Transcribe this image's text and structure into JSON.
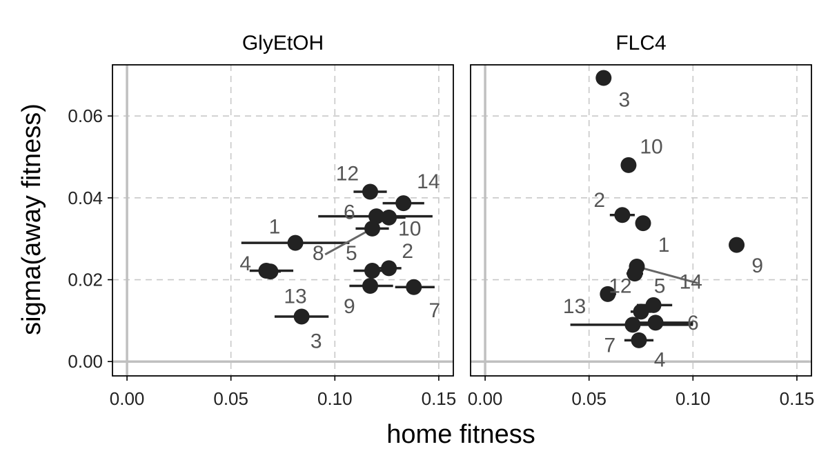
{
  "chart_data": {
    "type": "scatter",
    "xlabel": "home fitness",
    "ylabel": "sigma(away fitness)",
    "xlim": [
      -0.007,
      0.157
    ],
    "ylim": [
      -0.0035,
      0.0725
    ],
    "x_ticks": [
      "0.00",
      "0.05",
      "0.10",
      "0.15"
    ],
    "x_tick_values": [
      0,
      0.05,
      0.1,
      0.15
    ],
    "y_ticks": [
      "0.00",
      "0.02",
      "0.04",
      "0.06"
    ],
    "y_tick_values": [
      0,
      0.02,
      0.04,
      0.06
    ],
    "grid": true,
    "colors": {
      "point": "#222222",
      "label": "#555555",
      "grid": "#c8c8c8",
      "axis_ref": "#c0c0c0"
    },
    "panels": [
      {
        "title": "GlyEtOH",
        "points": [
          {
            "label": "1",
            "x": 0.081,
            "y": 0.029,
            "xerr": [
              0.055,
              0.107
            ],
            "label_x": 0.071,
            "label_y": 0.033
          },
          {
            "label": "2",
            "x": 0.126,
            "y": 0.0228,
            "xerr": [
              0.12,
              0.132
            ],
            "label_x": 0.135,
            "label_y": 0.027
          },
          {
            "label": "3",
            "x": 0.084,
            "y": 0.011,
            "xerr": [
              0.071,
              0.097
            ],
            "label_x": 0.091,
            "label_y": 0.005
          },
          {
            "label": "4",
            "x": 0.067,
            "y": 0.0222,
            "xerr": [
              0.059,
              0.08
            ],
            "label_x": 0.057,
            "label_y": 0.024
          },
          {
            "label": "5",
            "x": 0.118,
            "y": 0.0222,
            "xerr": [
              0.109,
              0.127
            ],
            "label_x": 0.108,
            "label_y": 0.0265
          },
          {
            "label": "6",
            "x": 0.12,
            "y": 0.0355,
            "xerr": [
              0.092,
              0.147
            ],
            "label_x": 0.107,
            "label_y": 0.0365
          },
          {
            "label": "7",
            "x": 0.138,
            "y": 0.0182,
            "xerr": [
              0.129,
              0.148
            ],
            "label_x": 0.148,
            "label_y": 0.0125
          },
          {
            "label": "8",
            "x": 0.118,
            "y": 0.0325,
            "xerr": [
              0.11,
              0.126
            ],
            "label_x": 0.092,
            "label_y": 0.0265,
            "connector": true
          },
          {
            "label": "9",
            "x": 0.117,
            "y": 0.0185,
            "xerr": [
              0.107,
              0.128
            ],
            "label_x": 0.107,
            "label_y": 0.0135
          },
          {
            "label": "10",
            "x": 0.126,
            "y": 0.0352,
            "xerr": [
              0.118,
              0.134
            ],
            "label_x": 0.136,
            "label_y": 0.0325
          },
          {
            "label": "12",
            "x": 0.117,
            "y": 0.0415,
            "xerr": [
              0.109,
              0.125
            ],
            "label_x": 0.106,
            "label_y": 0.046
          },
          {
            "label": "13",
            "x": 0.069,
            "y": 0.022,
            "xerr": [
              0.064,
              0.074
            ],
            "label_x": 0.081,
            "label_y": 0.016
          },
          {
            "label": "14",
            "x": 0.133,
            "y": 0.0387,
            "xerr": [
              0.123,
              0.143
            ],
            "label_x": 0.145,
            "label_y": 0.044
          }
        ]
      },
      {
        "title": "FLC4",
        "points": [
          {
            "label": "1",
            "x": 0.076,
            "y": 0.0338,
            "xerr": [
              0.073,
              0.079
            ],
            "label_x": 0.086,
            "label_y": 0.0285
          },
          {
            "label": "2",
            "x": 0.066,
            "y": 0.0358,
            "xerr": [
              0.06,
              0.072
            ],
            "label_x": 0.055,
            "label_y": 0.0395
          },
          {
            "label": "3",
            "x": 0.057,
            "y": 0.0693,
            "xerr": [
              0.054,
              0.06
            ],
            "label_x": 0.067,
            "label_y": 0.064
          },
          {
            "label": "4",
            "x": 0.074,
            "y": 0.0052,
            "xerr": [
              0.067,
              0.081
            ],
            "label_x": 0.084,
            "label_y": 0.0005
          },
          {
            "label": "5",
            "x": 0.072,
            "y": 0.0215,
            "xerr": [
              0.068,
              0.076
            ],
            "label_x": 0.084,
            "label_y": 0.0185
          },
          {
            "label": "6",
            "x": 0.082,
            "y": 0.0095,
            "xerr": [
              0.072,
              0.1
            ],
            "label_x": 0.1,
            "label_y": 0.0095
          },
          {
            "label": "7",
            "x": 0.071,
            "y": 0.009,
            "xerr": [
              0.041,
              0.1
            ],
            "label_x": 0.06,
            "label_y": 0.004
          },
          {
            "label": "9",
            "x": 0.121,
            "y": 0.0285,
            "xerr": [
              0.118,
              0.124
            ],
            "label_x": 0.131,
            "label_y": 0.0235
          },
          {
            "label": "10",
            "x": 0.069,
            "y": 0.048,
            "xerr": [
              0.066,
              0.072
            ],
            "label_x": 0.08,
            "label_y": 0.0525
          },
          {
            "label": "12",
            "x": 0.059,
            "y": 0.0165,
            "xerr": [
              0.056,
              0.063
            ],
            "label_x": 0.065,
            "label_y": 0.0185
          },
          {
            "label": "13",
            "x": 0.075,
            "y": 0.0122,
            "xerr": [
              0.07,
              0.08
            ],
            "label_x": 0.043,
            "label_y": 0.0135
          },
          {
            "label": "14",
            "x": 0.073,
            "y": 0.0232,
            "xerr": [
              0.07,
              0.076
            ],
            "label_x": 0.099,
            "label_y": 0.0195,
            "connector": true
          },
          {
            "label": "",
            "x": 0.081,
            "y": 0.0138,
            "xerr": [
              0.073,
              0.09
            ]
          }
        ]
      }
    ]
  }
}
